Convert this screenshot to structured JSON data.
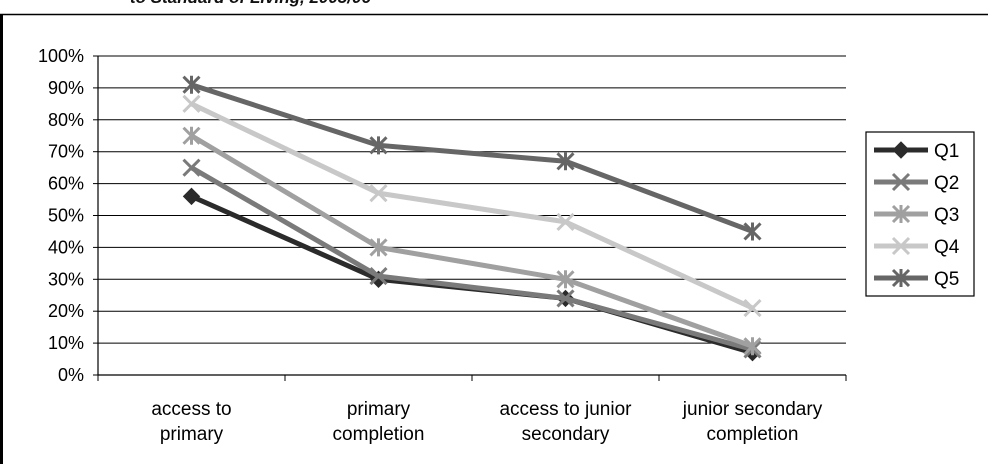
{
  "header": {
    "clipped_title": "to Standard of Living, 2005/06"
  },
  "chart_data": {
    "type": "line",
    "categories": [
      [
        "access to",
        "primary"
      ],
      [
        "primary",
        "completion"
      ],
      [
        "access to junior",
        "secondary"
      ],
      [
        "junior secondary",
        "completion"
      ]
    ],
    "y_ticks": [
      "0%",
      "10%",
      "20%",
      "30%",
      "40%",
      "50%",
      "60%",
      "70%",
      "80%",
      "90%",
      "100%"
    ],
    "ylim": [
      0,
      100
    ],
    "grid": "horizontal",
    "legend_position": "right",
    "series": [
      {
        "name": "Q1",
        "values": [
          56,
          30,
          24,
          7
        ],
        "color": "#2b2b2b",
        "marker": "diamond"
      },
      {
        "name": "Q2",
        "values": [
          65,
          31,
          24,
          8
        ],
        "color": "#7a7a7a",
        "marker": "x"
      },
      {
        "name": "Q3",
        "values": [
          75,
          40,
          30,
          9
        ],
        "color": "#a0a0a0",
        "marker": "asterisk"
      },
      {
        "name": "Q4",
        "values": [
          85,
          57,
          48,
          21
        ],
        "color": "#c8c8c8",
        "marker": "x"
      },
      {
        "name": "Q5",
        "values": [
          91,
          72,
          67,
          45
        ],
        "color": "#666666",
        "marker": "asterisk"
      }
    ]
  }
}
